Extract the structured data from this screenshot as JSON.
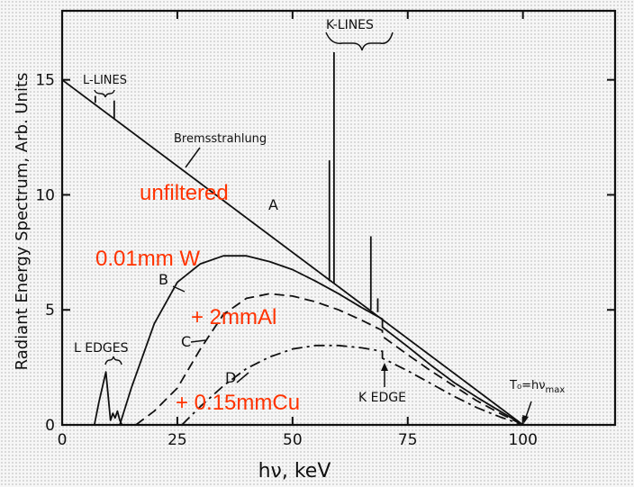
{
  "chart_data": {
    "type": "line",
    "xlabel": "hν, keV",
    "ylabel": "Radiant Energy Spectrum, Arb. Units",
    "xlim": [
      0,
      120
    ],
    "ylim": [
      0,
      18
    ],
    "xticks": [
      0,
      25,
      50,
      75,
      100
    ],
    "yticks": [
      0,
      5,
      10,
      15
    ],
    "grid": false,
    "series": [
      {
        "name": "A",
        "style": "solid",
        "x": [
          0,
          100
        ],
        "y": [
          15,
          0
        ]
      },
      {
        "name": "B",
        "style": "solid",
        "x": [
          12.5,
          15,
          20,
          25,
          30,
          35,
          40,
          45,
          50,
          55,
          60,
          65,
          69.5,
          69.5,
          75,
          80,
          85,
          90,
          95,
          100
        ],
        "y": [
          0,
          1.6,
          4.4,
          6.2,
          7.0,
          7.35,
          7.35,
          7.1,
          6.75,
          6.25,
          5.7,
          5.1,
          4.6,
          4.25,
          3.4,
          2.6,
          1.85,
          1.2,
          0.6,
          0
        ]
      },
      {
        "name": "C",
        "style": "dashed",
        "x": [
          16,
          20,
          25,
          30,
          35,
          40,
          45,
          50,
          55,
          60,
          65,
          69.5,
          69.5,
          75,
          80,
          85,
          90,
          95,
          100
        ],
        "y": [
          0,
          0.6,
          1.6,
          3.3,
          4.8,
          5.5,
          5.7,
          5.6,
          5.35,
          5.0,
          4.55,
          4.1,
          3.85,
          3.05,
          2.35,
          1.7,
          1.05,
          0.5,
          0
        ]
      },
      {
        "name": "D",
        "style": "dashdot",
        "x": [
          26,
          30,
          35,
          40,
          45,
          50,
          55,
          60,
          65,
          69.5,
          69.5,
          75,
          80,
          85,
          90,
          95,
          100
        ],
        "y": [
          0,
          0.8,
          1.7,
          2.45,
          2.95,
          3.3,
          3.45,
          3.45,
          3.35,
          3.2,
          2.9,
          2.35,
          1.8,
          1.25,
          0.75,
          0.35,
          0
        ]
      },
      {
        "name": "L EDGES",
        "style": "solid",
        "x": [
          7,
          8,
          9.5,
          10.5,
          11,
          11.5,
          12,
          12.5,
          13
        ],
        "y": [
          0,
          1.0,
          2.3,
          0.2,
          0.5,
          0.3,
          0.6,
          0.2,
          0
        ]
      }
    ],
    "spikes": [
      {
        "x": 7.2,
        "from": 14.0,
        "to": 14.3
      },
      {
        "x": 11.3,
        "from": 13.3,
        "to": 14.1
      },
      {
        "x": 58,
        "from": 6.25,
        "to": 11.5
      },
      {
        "x": 59,
        "from": 6.15,
        "to": 16.2
      },
      {
        "x": 67,
        "from": 5.0,
        "to": 8.2
      },
      {
        "x": 68.5,
        "from": 4.9,
        "to": 5.5
      }
    ],
    "text": {
      "curve_a": "A",
      "curve_b": "B",
      "curve_c": "C",
      "curve_d": "D",
      "bremsstrahlung": "Bremsstrahlung",
      "k_lines": "K-LINES",
      "l_lines": "L-LINES",
      "l_edges": "L EDGES",
      "k_edge": "K EDGE",
      "t0_formula": "T₀=hν",
      "t0_sub": "max"
    },
    "annotations": {
      "unfiltered": "unfiltered",
      "w_filter": "0.01mm W",
      "al_filter": "+ 2mmAl",
      "cu_filter": "+ 0.15mmCu"
    },
    "colors": {
      "annotation": "#ff3300",
      "ink": "#111111"
    }
  }
}
